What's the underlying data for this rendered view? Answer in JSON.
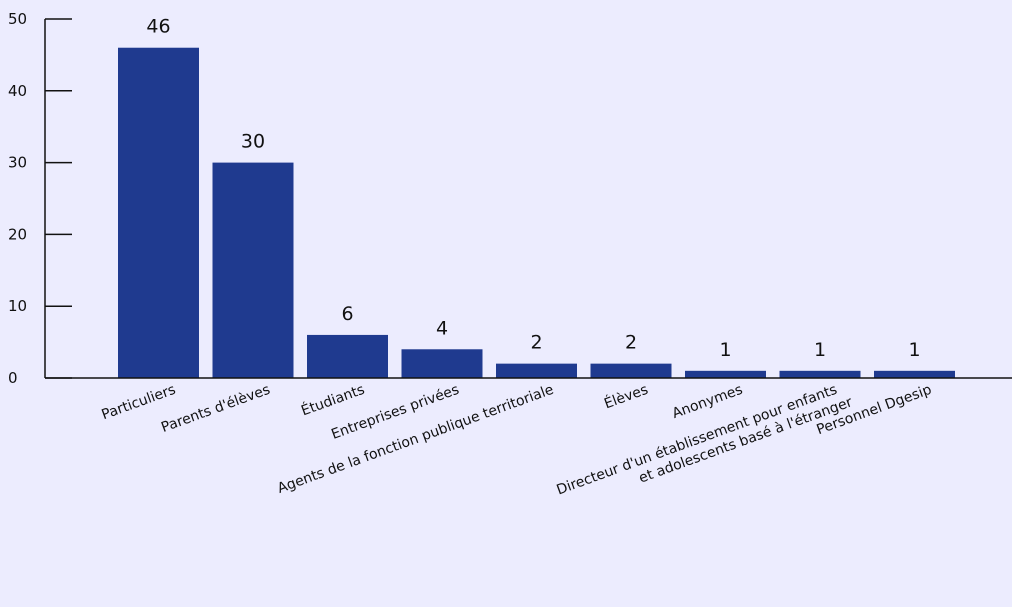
{
  "chart_data": {
    "type": "bar",
    "categories": [
      "Particuliers",
      "Parents d'élèves",
      "Étudiants",
      "Entreprises privées",
      "Agents de la fonction publique territoriale",
      "Élèves",
      "Anonymes",
      [
        "Directeur d'un établissement pour enfants",
        "et adolescents basé à l'étranger"
      ],
      "Personnel Dgesip"
    ],
    "values": [
      46,
      30,
      6,
      4,
      2,
      2,
      1,
      1,
      1
    ],
    "ylim": [
      0,
      50
    ],
    "yticks": [
      0,
      10,
      20,
      30,
      40,
      50
    ],
    "data_labels": [
      "46",
      "30",
      "6",
      "4",
      "2",
      "2",
      "1",
      "1",
      "1"
    ],
    "title": "",
    "xlabel": "",
    "ylabel": "",
    "grid": false,
    "legend": "none",
    "colors": {
      "bar": "#1f3a8f",
      "background": "#ececfe",
      "axis": "#111111"
    }
  }
}
